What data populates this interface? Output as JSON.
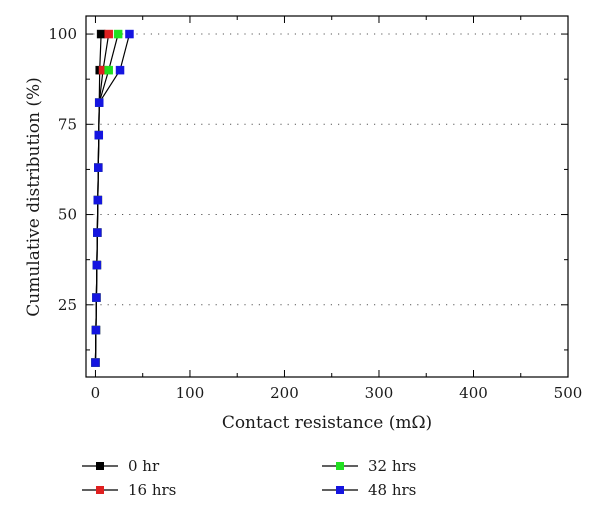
{
  "chart_data": {
    "type": "line",
    "xlabel": "Contact resistance (mΩ)",
    "ylabel": "Cumulative distribution (%)",
    "xlim": [
      -10,
      500
    ],
    "ylim": [
      5,
      105
    ],
    "xticks": [
      0,
      100,
      200,
      300,
      400,
      500
    ],
    "yticks": [
      25,
      50,
      75,
      100
    ],
    "grid": "horizontal dotted at major y ticks",
    "legend_position": "bottom, two columns",
    "y": [
      9,
      18,
      27,
      36,
      45,
      54,
      63,
      72,
      81,
      90,
      100
    ],
    "series": [
      {
        "name": "0 hr",
        "color": "#000000",
        "x": [
          0,
          0.5,
          1,
          1.5,
          2,
          2.5,
          3,
          3.5,
          4,
          4.5,
          6
        ]
      },
      {
        "name": "16 hrs",
        "color": "#e02020",
        "x": [
          0,
          0.5,
          1,
          1.5,
          2,
          2.5,
          3,
          3.5,
          4,
          8,
          14
        ]
      },
      {
        "name": "32 hrs",
        "color": "#20e020",
        "x": [
          0,
          0.5,
          1,
          1.5,
          2,
          2.5,
          3,
          3.5,
          4,
          14,
          24
        ]
      },
      {
        "name": "48 hrs",
        "color": "#1515e0",
        "x": [
          0,
          0.5,
          1,
          1.5,
          2,
          2.5,
          3,
          3.5,
          4,
          26,
          36
        ]
      }
    ]
  }
}
